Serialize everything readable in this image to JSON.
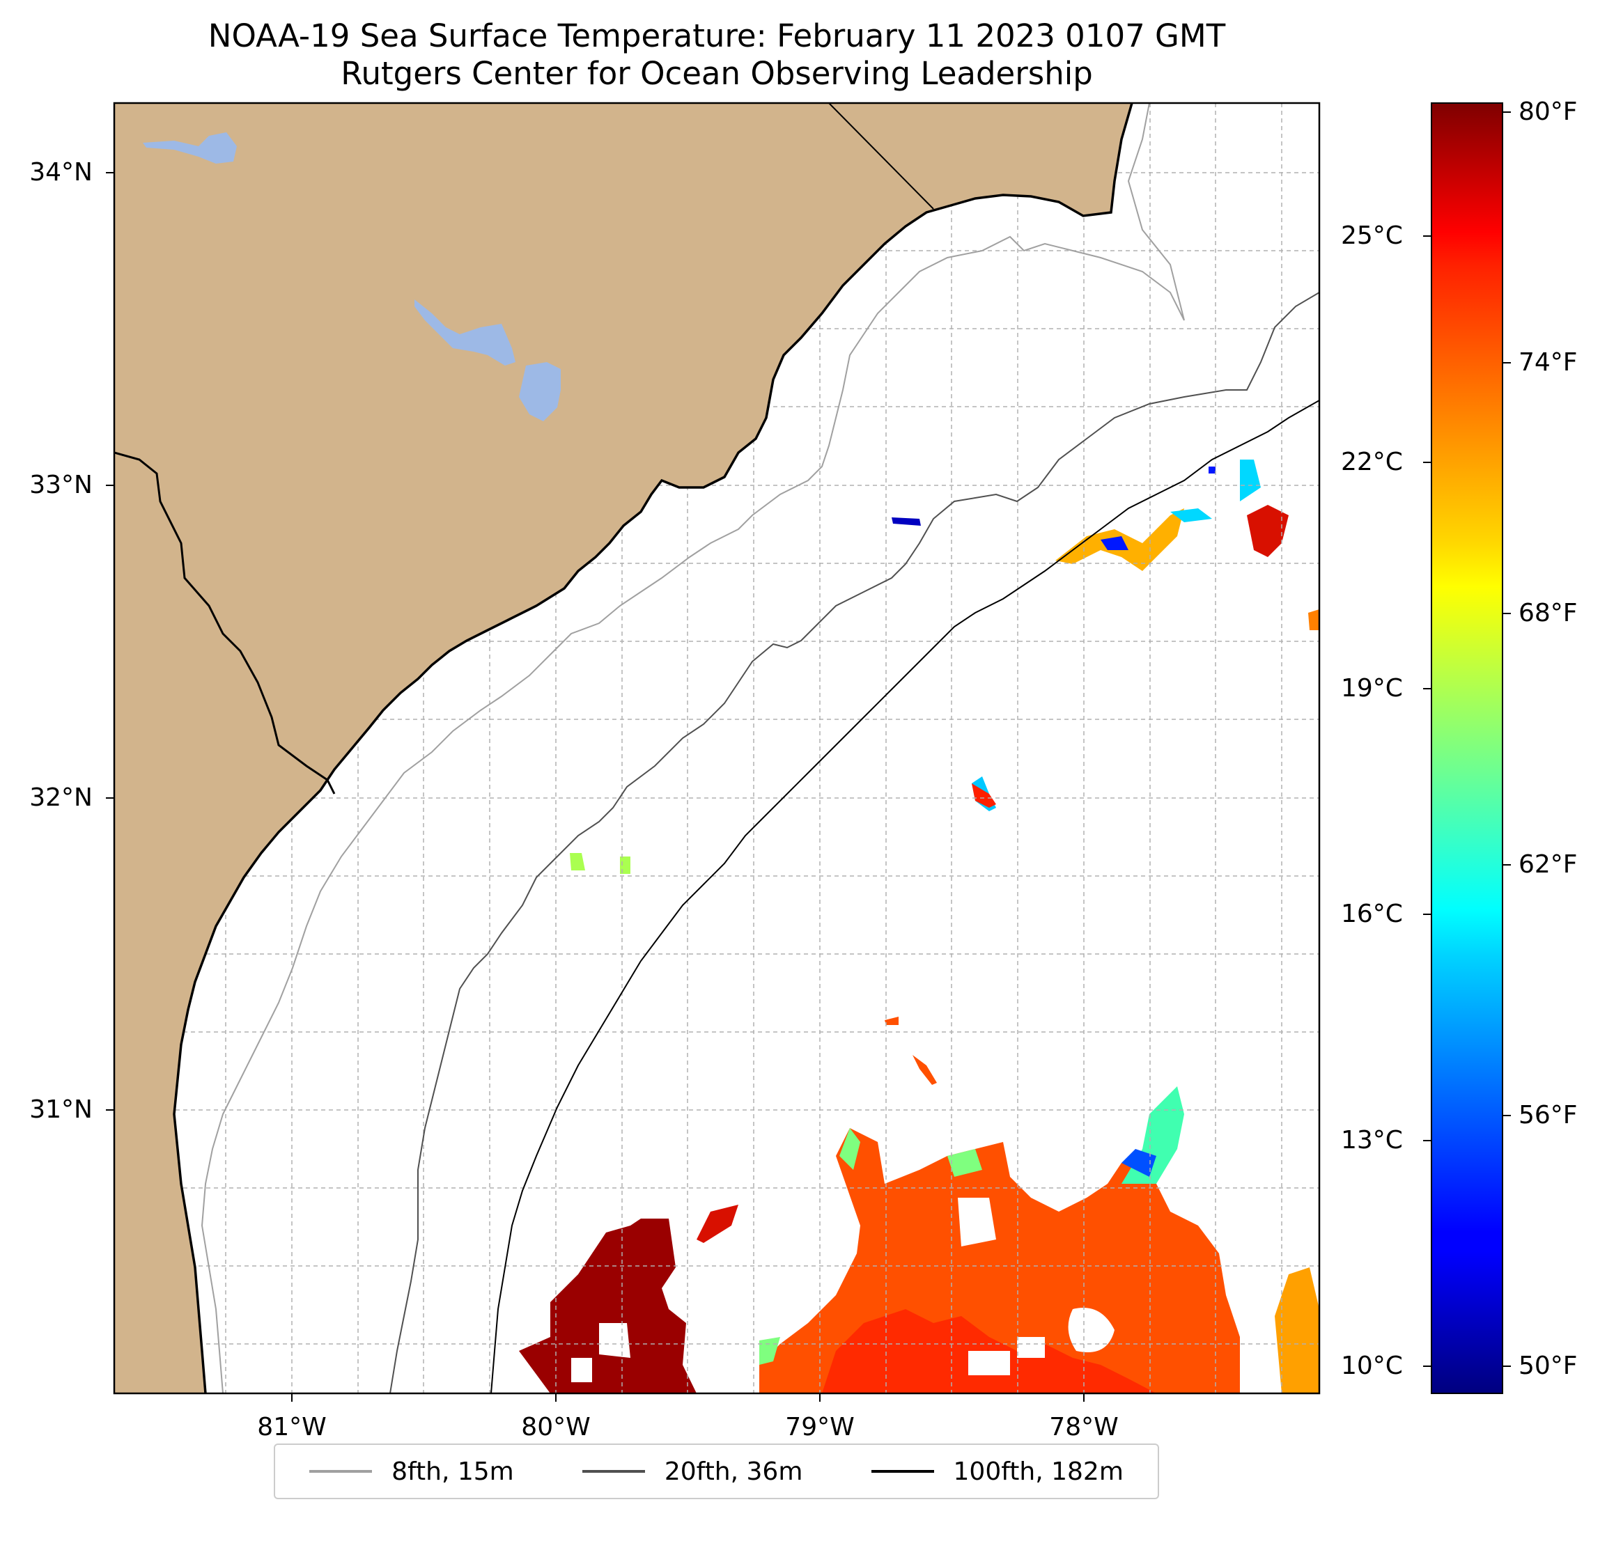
{
  "title": {
    "line1": "NOAA-19 Sea Surface Temperature: February 11 2023 0107 GMT",
    "line2": "Rutgers Center for Ocean Observing Leadership"
  },
  "map": {
    "land_color": "#d2b48c",
    "lake_color": "#9db9e6",
    "grid_color": "#b0b0b0",
    "lon_range": [
      -81.67,
      -77.13
    ],
    "lat_range": [
      30.1,
      34.22
    ],
    "lat_ticks": [
      {
        "value": 34,
        "label": "34°N"
      },
      {
        "value": 33,
        "label": "33°N"
      },
      {
        "value": 32,
        "label": "32°N"
      },
      {
        "value": 31,
        "label": "31°N"
      }
    ],
    "lon_ticks": [
      {
        "value": -81,
        "label": "81°W"
      },
      {
        "value": -80,
        "label": "80°W"
      },
      {
        "value": -79,
        "label": "79°W"
      },
      {
        "value": -78,
        "label": "78°W"
      }
    ]
  },
  "colorbar": {
    "colormap": "jet",
    "range_celsius": [
      9.5,
      27.2
    ],
    "celsius_ticks": [
      {
        "value": 25,
        "label": "25°C"
      },
      {
        "value": 22,
        "label": "22°C"
      },
      {
        "value": 19,
        "label": "19°C"
      },
      {
        "value": 16,
        "label": "16°C"
      },
      {
        "value": 13,
        "label": "13°C"
      },
      {
        "value": 10,
        "label": "10°C"
      }
    ],
    "fahrenheit_ticks": [
      {
        "value": 80,
        "label": "80°F"
      },
      {
        "value": 74,
        "label": "74°F"
      },
      {
        "value": 68,
        "label": "68°F"
      },
      {
        "value": 62,
        "label": "62°F"
      },
      {
        "value": 56,
        "label": "56°F"
      },
      {
        "value": 50,
        "label": "50°F"
      }
    ]
  },
  "legend": {
    "items": [
      {
        "label": "8fth, 15m",
        "color": "#a0a0a0"
      },
      {
        "label": "20fth, 36m",
        "color": "#505050"
      },
      {
        "label": "100fth, 182m",
        "color": "#000000"
      }
    ]
  }
}
